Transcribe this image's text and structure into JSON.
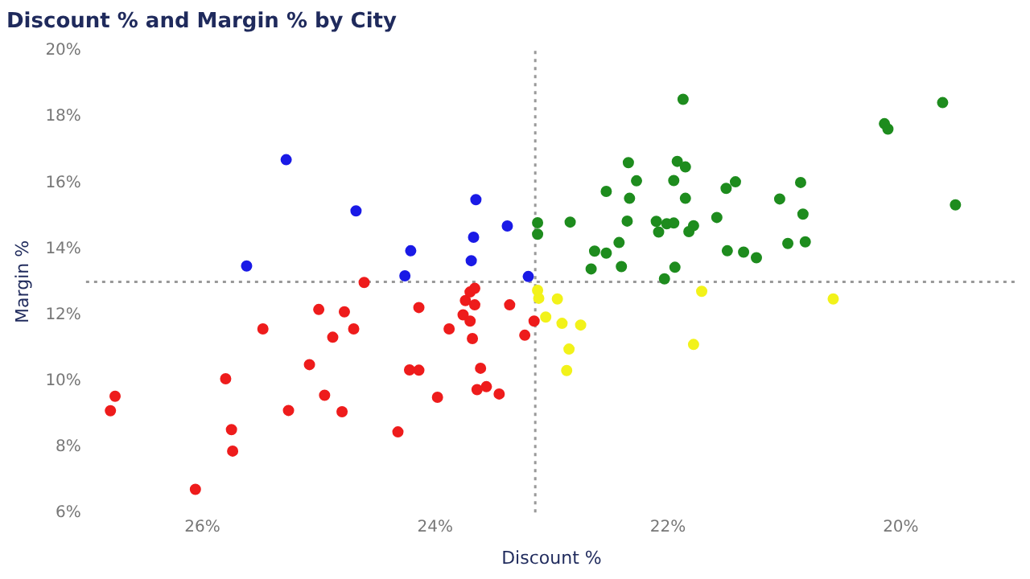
{
  "chart_data": {
    "type": "scatter",
    "title": "Discount % and Margin % by City",
    "xlabel": "Discount %",
    "ylabel": "Margin %",
    "xlim": [
      27,
      19
    ],
    "ylim": [
      6,
      20
    ],
    "xticks": [
      {
        "value": 26,
        "label": "26%"
      },
      {
        "value": 24,
        "label": "24%"
      },
      {
        "value": 22,
        "label": "22%"
      },
      {
        "value": 20,
        "label": "20%"
      }
    ],
    "yticks": [
      {
        "value": 6,
        "label": "6%"
      },
      {
        "value": 8,
        "label": "8%"
      },
      {
        "value": 10,
        "label": "10%"
      },
      {
        "value": 12,
        "label": "12%"
      },
      {
        "value": 14,
        "label": "14%"
      },
      {
        "value": 16,
        "label": "16%"
      },
      {
        "value": 18,
        "label": "18%"
      },
      {
        "value": 20,
        "label": "20%"
      }
    ],
    "grid": false,
    "legend": false,
    "marker": "circle",
    "ref_lines": [
      {
        "axis": "x",
        "value": 23.14,
        "color": "#999999",
        "line_style": "dotted"
      },
      {
        "axis": "y",
        "value": 13.0,
        "color": "#999999",
        "line_style": "dotted"
      }
    ],
    "series": [
      {
        "color": "#1a1ae6",
        "x": [
          25.28,
          24.68,
          23.65,
          23.38,
          23.67,
          24.21,
          23.69,
          25.62,
          24.26,
          23.2
        ],
        "values": [
          16.7,
          15.15,
          15.49,
          14.69,
          14.35,
          13.94,
          13.64,
          13.48,
          13.18,
          13.16
        ]
      },
      {
        "color": "#ee1c1c",
        "x": [
          24.61,
          25.0,
          24.78,
          25.48,
          24.7,
          24.88,
          24.14,
          23.88,
          23.74,
          23.7,
          23.66,
          23.66,
          23.76,
          23.7,
          23.68,
          23.36,
          23.23,
          23.15,
          25.08,
          24.22,
          24.14,
          23.61,
          25.8,
          26.75,
          26.79,
          24.95,
          25.26,
          24.8,
          23.98,
          23.64,
          23.56,
          23.45,
          25.75,
          25.74,
          24.32,
          26.06
        ],
        "values": [
          12.98,
          12.16,
          12.09,
          11.57,
          11.57,
          11.32,
          12.22,
          11.57,
          12.43,
          12.69,
          12.8,
          12.3,
          12.0,
          11.81,
          11.28,
          12.3,
          11.38,
          11.81,
          10.49,
          10.33,
          10.32,
          10.38,
          10.06,
          9.53,
          9.09,
          9.56,
          9.1,
          9.06,
          9.5,
          9.73,
          9.82,
          9.6,
          8.52,
          7.87,
          8.45,
          6.71
        ]
      },
      {
        "color": "#f2f21a",
        "x": [
          23.12,
          23.11,
          22.95,
          23.05,
          22.91,
          22.75,
          22.85,
          22.87,
          21.71,
          21.78,
          20.58
        ],
        "values": [
          12.74,
          12.5,
          12.48,
          11.93,
          11.74,
          11.69,
          10.96,
          10.31,
          12.71,
          11.1,
          12.48
        ]
      },
      {
        "color": "#1e8c1e",
        "x": [
          23.12,
          23.12,
          22.84,
          21.87,
          22.34,
          21.92,
          21.85,
          22.27,
          21.95,
          22.53,
          22.33,
          21.85,
          21.5,
          21.42,
          20.86,
          21.04,
          20.84,
          20.14,
          20.11,
          19.64,
          19.53,
          22.35,
          22.1,
          22.01,
          21.95,
          21.78,
          22.08,
          21.82,
          21.58,
          22.42,
          22.63,
          22.53,
          22.4,
          22.66,
          21.94,
          22.03,
          21.49,
          21.35,
          21.24,
          20.97,
          20.82
        ],
        "values": [
          14.79,
          14.44,
          14.81,
          18.53,
          16.61,
          16.65,
          16.48,
          16.06,
          16.07,
          15.74,
          15.53,
          15.53,
          15.83,
          16.03,
          16.01,
          15.51,
          15.05,
          17.79,
          17.63,
          18.43,
          15.33,
          14.84,
          14.83,
          14.76,
          14.78,
          14.7,
          14.51,
          14.52,
          14.95,
          14.19,
          13.93,
          13.87,
          13.46,
          13.39,
          13.44,
          13.09,
          13.94,
          13.9,
          13.73,
          14.16,
          14.21
        ]
      }
    ]
  }
}
